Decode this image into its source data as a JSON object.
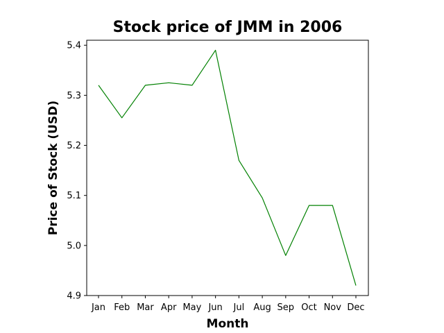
{
  "chart_data": {
    "type": "line",
    "title": "Stock price of JMM in 2006",
    "xlabel": "Month",
    "ylabel": "Price of Stock (USD)",
    "categories": [
      "Jan",
      "Feb",
      "Mar",
      "Apr",
      "May",
      "Jun",
      "Jul",
      "Aug",
      "Sep",
      "Oct",
      "Nov",
      "Dec"
    ],
    "series": [
      {
        "values": [
          5.32,
          5.255,
          5.32,
          5.325,
          5.32,
          5.39,
          5.17,
          5.095,
          4.98,
          5.08,
          5.08,
          4.92
        ],
        "color": "#008000"
      }
    ],
    "yticks": [
      "4.9",
      "5.0",
      "5.1",
      "5.2",
      "5.3",
      "5.4"
    ],
    "ylim": [
      4.9,
      5.41
    ],
    "grid": false,
    "legend": "none"
  }
}
